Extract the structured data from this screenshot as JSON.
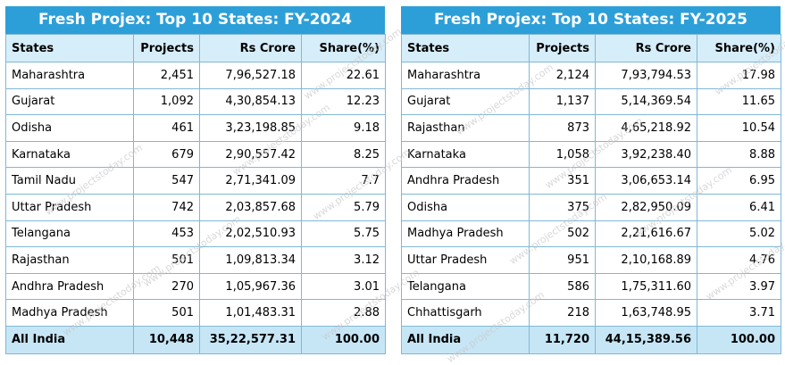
{
  "watermark": "www.projectstoday.com",
  "columns": [
    "States",
    "Projects",
    "Rs Crore",
    "Share(%)"
  ],
  "left": {
    "title": "Fresh Projex: Top 10 States: FY-2024",
    "rows": [
      {
        "state": "Maharashtra",
        "projects": "2,451",
        "crore": "7,96,527.18",
        "share": "22.61"
      },
      {
        "state": "Gujarat",
        "projects": "1,092",
        "crore": "4,30,854.13",
        "share": "12.23"
      },
      {
        "state": "Odisha",
        "projects": "461",
        "crore": "3,23,198.85",
        "share": "9.18"
      },
      {
        "state": "Karnataka",
        "projects": "679",
        "crore": "2,90,557.42",
        "share": "8.25"
      },
      {
        "state": "Tamil Nadu",
        "projects": "547",
        "crore": "2,71,341.09",
        "share": "7.7"
      },
      {
        "state": "Uttar Pradesh",
        "projects": "742",
        "crore": "2,03,857.68",
        "share": "5.79"
      },
      {
        "state": "Telangana",
        "projects": "453",
        "crore": "2,02,510.93",
        "share": "5.75"
      },
      {
        "state": "Rajasthan",
        "projects": "501",
        "crore": "1,09,813.34",
        "share": "3.12"
      },
      {
        "state": "Andhra Pradesh",
        "projects": "270",
        "crore": "1,05,967.36",
        "share": "3.01"
      },
      {
        "state": "Madhya Pradesh",
        "projects": "501",
        "crore": "1,01,483.31",
        "share": "2.88"
      }
    ],
    "total": {
      "state": "All India",
      "projects": "10,448",
      "crore": "35,22,577.31",
      "share": "100.00"
    }
  },
  "right": {
    "title": "Fresh Projex: Top 10 States: FY-2025",
    "rows": [
      {
        "state": "Maharashtra",
        "projects": "2,124",
        "crore": "7,93,794.53",
        "share": "17.98"
      },
      {
        "state": "Gujarat",
        "projects": "1,137",
        "crore": "5,14,369.54",
        "share": "11.65"
      },
      {
        "state": "Rajasthan",
        "projects": "873",
        "crore": "4,65,218.92",
        "share": "10.54"
      },
      {
        "state": "Karnataka",
        "projects": "1,058",
        "crore": "3,92,238.40",
        "share": "8.88"
      },
      {
        "state": "Andhra Pradesh",
        "projects": "351",
        "crore": "3,06,653.14",
        "share": "6.95"
      },
      {
        "state": "Odisha",
        "projects": "375",
        "crore": "2,82,950.09",
        "share": "6.41"
      },
      {
        "state": "Madhya Pradesh",
        "projects": "502",
        "crore": "2,21,616.67",
        "share": "5.02"
      },
      {
        "state": "Uttar Pradesh",
        "projects": "951",
        "crore": "2,10,168.89",
        "share": "4.76"
      },
      {
        "state": "Telangana",
        "projects": "586",
        "crore": "1,75,311.60",
        "share": "3.97"
      },
      {
        "state": "Chhattisgarh",
        "projects": "218",
        "crore": "1,63,748.95",
        "share": "3.71"
      }
    ],
    "total": {
      "state": "All India",
      "projects": "11,720",
      "crore": "44,15,389.56",
      "share": "100.00"
    }
  }
}
